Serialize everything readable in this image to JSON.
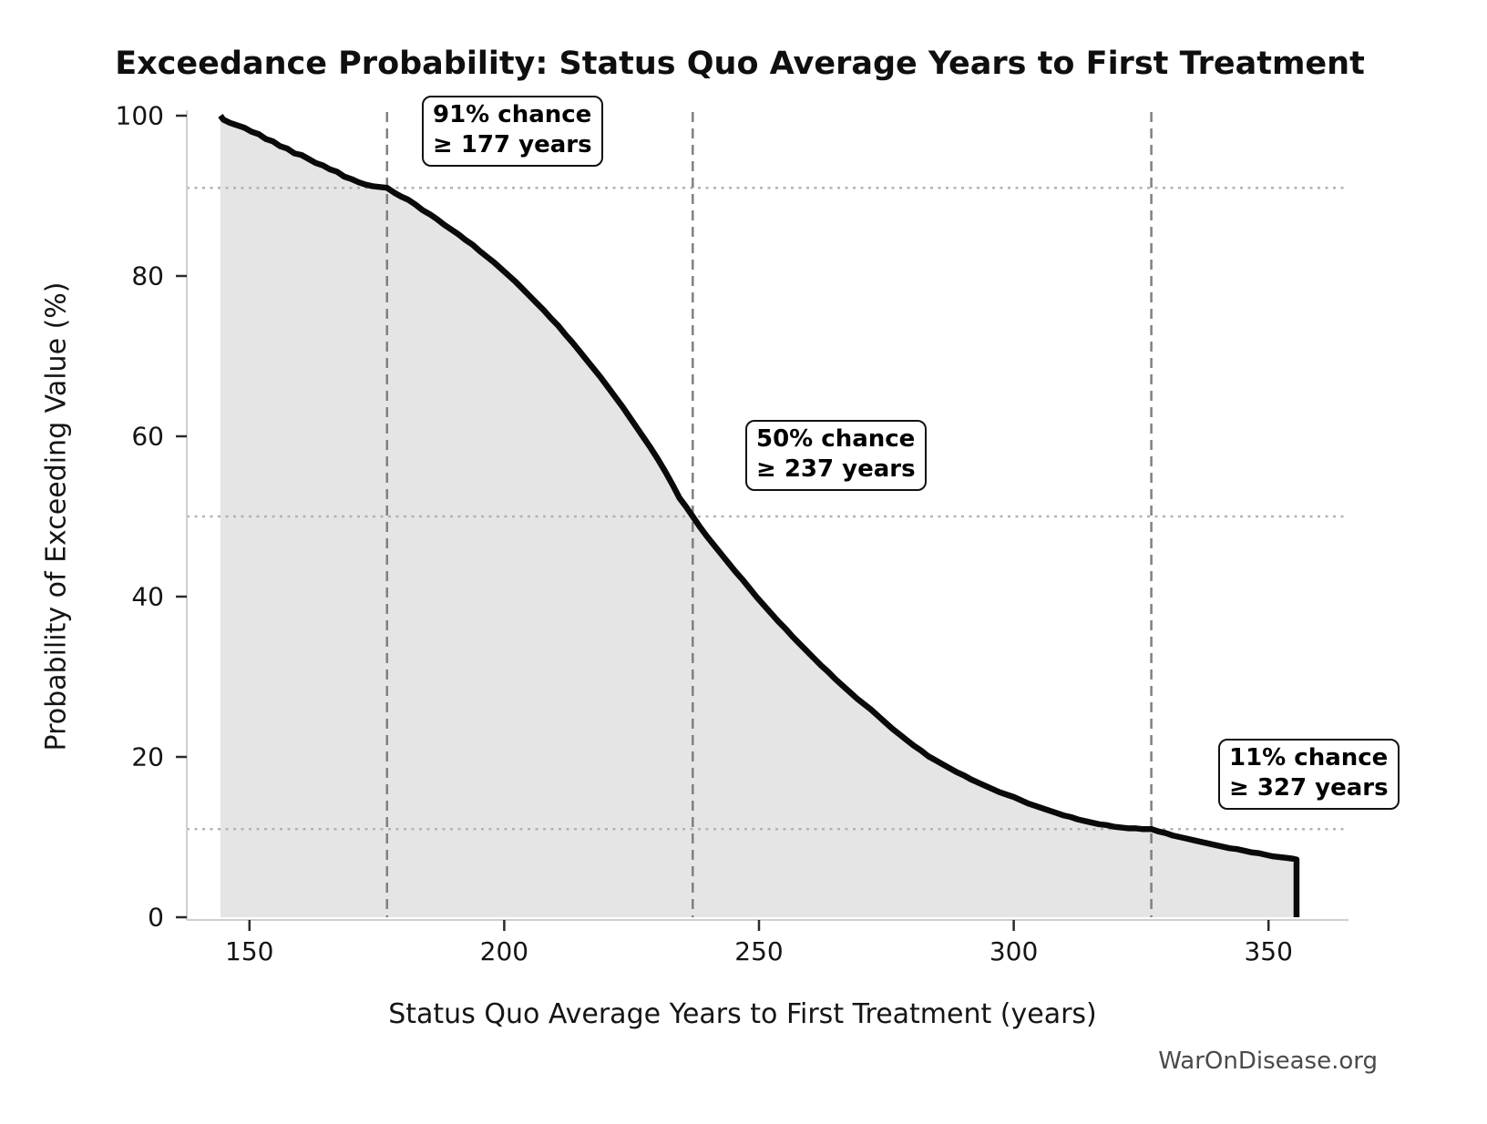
{
  "title": "Exceedance Probability: Status Quo Average Years to First Treatment",
  "watermark": "WarOnDisease.org",
  "chart_data": {
    "type": "line",
    "title": "Exceedance Probability: Status Quo Average Years to First Treatment",
    "xlabel": "Status Quo Average Years to First Treatment (years)",
    "ylabel": "Probability of Exceeding Value (%)",
    "xlim": [
      137.7,
      365.7
    ],
    "ylim": [
      0,
      100
    ],
    "x_ticks": [
      150,
      200,
      250,
      300,
      350
    ],
    "y_ticks": [
      0,
      20,
      40,
      60,
      80,
      100
    ],
    "grid": {
      "vlines": [
        177,
        237,
        327
      ],
      "hlines": [
        91,
        50,
        11
      ]
    },
    "legend": "none",
    "line_color": "#0a0a0a",
    "fill_color": "#e5e5e6",
    "vline_color": "#808080",
    "hline_color": "#b3b3b3",
    "spine_color": "#cfcfcf",
    "tick_color": "#2a2a2a",
    "annotations": [
      {
        "line1": "91% chance",
        "line2": "≥ 177 years",
        "x": 177,
        "p": 91
      },
      {
        "line1": "50% chance",
        "line2": "≥ 237 years",
        "x": 237,
        "p": 50
      },
      {
        "line1": "11% chance",
        "line2": "≥ 327 years",
        "x": 327,
        "p": 11
      }
    ],
    "series": [
      {
        "name": "exceedance",
        "points": [
          [
            144.3,
            100
          ],
          [
            144.9,
            99.5
          ],
          [
            146.2,
            99.1
          ],
          [
            147.6,
            98.8
          ],
          [
            149,
            98.5
          ],
          [
            150.4,
            98.0
          ],
          [
            151.8,
            97.7
          ],
          [
            153.2,
            97.1
          ],
          [
            154.6,
            96.8
          ],
          [
            156,
            96.2
          ],
          [
            157.4,
            95.9
          ],
          [
            158.8,
            95.3
          ],
          [
            160.2,
            95.1
          ],
          [
            161.6,
            94.6
          ],
          [
            163,
            94.1
          ],
          [
            164.4,
            93.8
          ],
          [
            165.8,
            93.3
          ],
          [
            167.2,
            93.0
          ],
          [
            168.6,
            92.4
          ],
          [
            170,
            92.1
          ],
          [
            171.4,
            91.7
          ],
          [
            172.8,
            91.4
          ],
          [
            174.2,
            91.2
          ],
          [
            175.6,
            91.1
          ],
          [
            177,
            91.0
          ],
          [
            178.4,
            90.4
          ],
          [
            179.8,
            89.9
          ],
          [
            181.2,
            89.5
          ],
          [
            182.6,
            88.9
          ],
          [
            184,
            88.2
          ],
          [
            185.4,
            87.7
          ],
          [
            186.8,
            87.1
          ],
          [
            188.2,
            86.4
          ],
          [
            189.6,
            85.8
          ],
          [
            191,
            85.2
          ],
          [
            192.4,
            84.5
          ],
          [
            193.8,
            83.9
          ],
          [
            195.2,
            83.1
          ],
          [
            196.6,
            82.4
          ],
          [
            198,
            81.7
          ],
          [
            199.4,
            80.9
          ],
          [
            200.8,
            80.1
          ],
          [
            202.2,
            79.3
          ],
          [
            203.6,
            78.4
          ],
          [
            205,
            77.5
          ],
          [
            206.4,
            76.6
          ],
          [
            207.8,
            75.7
          ],
          [
            209.2,
            74.7
          ],
          [
            210.6,
            73.8
          ],
          [
            212,
            72.7
          ],
          [
            213.4,
            71.7
          ],
          [
            214.8,
            70.6
          ],
          [
            216.2,
            69.5
          ],
          [
            217.6,
            68.4
          ],
          [
            219,
            67.3
          ],
          [
            220.4,
            66.1
          ],
          [
            221.8,
            64.9
          ],
          [
            223.2,
            63.7
          ],
          [
            224.6,
            62.4
          ],
          [
            226,
            61.1
          ],
          [
            227.4,
            59.8
          ],
          [
            228.8,
            58.5
          ],
          [
            230.2,
            57.1
          ],
          [
            231.6,
            55.6
          ],
          [
            233,
            54.0
          ],
          [
            234.4,
            52.3
          ],
          [
            235.7,
            51.2
          ],
          [
            237,
            50.0
          ],
          [
            238.4,
            48.7
          ],
          [
            239.8,
            47.5
          ],
          [
            241.2,
            46.4
          ],
          [
            242.6,
            45.3
          ],
          [
            244,
            44.2
          ],
          [
            245.4,
            43.1
          ],
          [
            246.8,
            42.1
          ],
          [
            248.2,
            41.0
          ],
          [
            249.6,
            39.9
          ],
          [
            251,
            38.9
          ],
          [
            252.4,
            37.9
          ],
          [
            253.8,
            36.9
          ],
          [
            255.2,
            36.0
          ],
          [
            256.6,
            35.0
          ],
          [
            258,
            34.1
          ],
          [
            259.4,
            33.2
          ],
          [
            260.8,
            32.3
          ],
          [
            262.2,
            31.4
          ],
          [
            263.6,
            30.6
          ],
          [
            265,
            29.7
          ],
          [
            266.4,
            28.9
          ],
          [
            267.8,
            28.1
          ],
          [
            269.2,
            27.3
          ],
          [
            270.6,
            26.6
          ],
          [
            272,
            25.9
          ],
          [
            273.4,
            25.1
          ],
          [
            274.8,
            24.3
          ],
          [
            276.2,
            23.5
          ],
          [
            277.6,
            22.8
          ],
          [
            279,
            22.1
          ],
          [
            280.4,
            21.4
          ],
          [
            281.8,
            20.8
          ],
          [
            283.2,
            20.1
          ],
          [
            284.6,
            19.6
          ],
          [
            286,
            19.1
          ],
          [
            287.4,
            18.6
          ],
          [
            288.8,
            18.1
          ],
          [
            290.2,
            17.7
          ],
          [
            291.6,
            17.2
          ],
          [
            293,
            16.8
          ],
          [
            294.4,
            16.4
          ],
          [
            295.8,
            16.0
          ],
          [
            297.2,
            15.6
          ],
          [
            298.6,
            15.3
          ],
          [
            300,
            15.0
          ],
          [
            301.4,
            14.6
          ],
          [
            302.8,
            14.2
          ],
          [
            304.2,
            13.9
          ],
          [
            305.6,
            13.6
          ],
          [
            307,
            13.3
          ],
          [
            308.4,
            13.0
          ],
          [
            309.8,
            12.7
          ],
          [
            311.2,
            12.5
          ],
          [
            312.6,
            12.2
          ],
          [
            314,
            12.0
          ],
          [
            315.4,
            11.8
          ],
          [
            316.8,
            11.6
          ],
          [
            318.2,
            11.5
          ],
          [
            319.6,
            11.3
          ],
          [
            321,
            11.2
          ],
          [
            322.4,
            11.1
          ],
          [
            323.8,
            11.1
          ],
          [
            325.2,
            11.0
          ],
          [
            327,
            11.0
          ],
          [
            328.4,
            10.7
          ],
          [
            329.8,
            10.5
          ],
          [
            331.2,
            10.2
          ],
          [
            332.6,
            10.0
          ],
          [
            334,
            9.8
          ],
          [
            335.4,
            9.6
          ],
          [
            336.8,
            9.4
          ],
          [
            338.2,
            9.2
          ],
          [
            339.6,
            9.0
          ],
          [
            341,
            8.8
          ],
          [
            342.4,
            8.6
          ],
          [
            343.8,
            8.5
          ],
          [
            345.2,
            8.3
          ],
          [
            346.6,
            8.1
          ],
          [
            348,
            8.0
          ],
          [
            349.4,
            7.8
          ],
          [
            350.8,
            7.6
          ],
          [
            352.2,
            7.5
          ],
          [
            353.6,
            7.4
          ],
          [
            354.8,
            7.3
          ],
          [
            355.5,
            7.2
          ],
          [
            355.5,
            0
          ]
        ]
      }
    ]
  }
}
